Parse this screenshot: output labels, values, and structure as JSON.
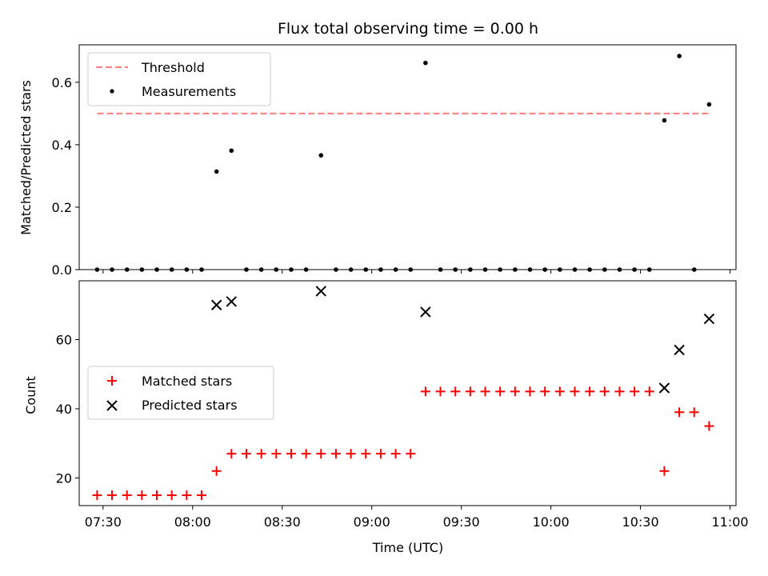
{
  "chart_data": {
    "title": "Flux total observing time = 0.00 h",
    "xlabel": "Time (UTC)",
    "xlim": [
      "07:22",
      "11:02"
    ],
    "x_ticks": [
      "07:30",
      "08:00",
      "08:30",
      "09:00",
      "09:30",
      "10:00",
      "10:30",
      "11:00"
    ],
    "x": [
      "07:28",
      "07:33",
      "07:38",
      "07:43",
      "07:48",
      "07:53",
      "07:58",
      "08:03",
      "08:08",
      "08:13",
      "08:18",
      "08:23",
      "08:28",
      "08:33",
      "08:38",
      "08:43",
      "08:48",
      "08:53",
      "08:58",
      "09:03",
      "09:08",
      "09:13",
      "09:18",
      "09:23",
      "09:28",
      "09:33",
      "09:38",
      "09:43",
      "09:48",
      "09:53",
      "09:58",
      "10:03",
      "10:08",
      "10:13",
      "10:18",
      "10:23",
      "10:28",
      "10:33",
      "10:38",
      "10:43",
      "10:48",
      "10:53"
    ],
    "panels": [
      {
        "type": "scatter",
        "ylabel": "Matched/Predicted stars",
        "ylim": [
          0,
          0.72
        ],
        "y_ticks": [
          "0.0",
          "0.2",
          "0.4",
          "0.6"
        ],
        "legend_position": "top-left",
        "threshold": {
          "name": "Threshold",
          "value": 0.5,
          "x_start": "07:28",
          "x_end": "10:53",
          "color": "#ff7f7f"
        },
        "series": [
          {
            "name": "Measurements",
            "color": "#000000",
            "values": [
              0,
              0,
              0,
              0,
              0,
              0,
              0,
              0,
              0.314,
              0.381,
              0,
              0,
              0,
              0,
              0,
              0.366,
              0,
              0,
              0,
              0,
              0,
              0,
              0.662,
              0,
              0,
              0,
              0,
              0,
              0,
              0,
              0,
              0,
              0,
              0,
              0,
              0,
              0,
              0,
              0.478,
              0.684,
              0,
              0.529
            ]
          }
        ]
      },
      {
        "type": "scatter",
        "ylabel": "Count",
        "ylim": [
          12,
          77
        ],
        "y_ticks": [
          "20",
          "40",
          "60"
        ],
        "legend_position": "center-left",
        "series": [
          {
            "name": "Matched stars",
            "marker": "+",
            "color": "#ff0000",
            "values": [
              15,
              15,
              15,
              15,
              15,
              15,
              15,
              15,
              22,
              27,
              27,
              27,
              27,
              27,
              27,
              27,
              27,
              27,
              27,
              27,
              27,
              27,
              45,
              45,
              45,
              45,
              45,
              45,
              45,
              45,
              45,
              45,
              45,
              45,
              45,
              45,
              45,
              45,
              22,
              39,
              39,
              35
            ]
          },
          {
            "name": "Predicted stars",
            "marker": "x",
            "color": "#000000",
            "x": [
              "08:08",
              "08:13",
              "08:43",
              "09:18",
              "10:38",
              "10:43",
              "10:53"
            ],
            "values": [
              70,
              71,
              74,
              68,
              46,
              57,
              66
            ]
          }
        ]
      }
    ]
  }
}
